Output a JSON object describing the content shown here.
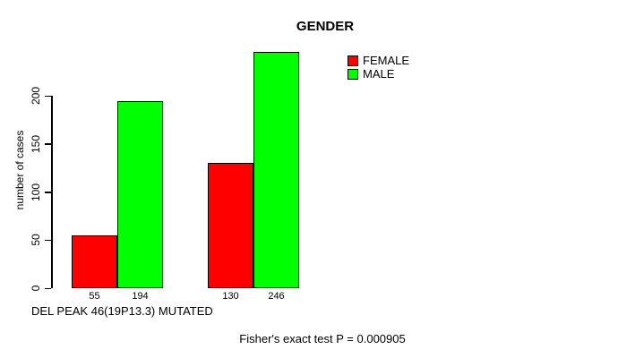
{
  "chart_data": {
    "type": "bar",
    "title": "GENDER",
    "ylabel": "number of cases",
    "xlabel": "DEL PEAK 46(19P13.3) MUTATED",
    "annotation": "Fisher's exact test P = 0.000905",
    "yticks": [
      0,
      50,
      100,
      150,
      200
    ],
    "ylim": [
      0,
      250
    ],
    "grid": false,
    "legend_position": "top-right",
    "series": [
      {
        "name": "FEMALE",
        "color": "#ff0000",
        "values": [
          55,
          130
        ]
      },
      {
        "name": "MALE",
        "color": "#00ff00",
        "values": [
          194,
          246
        ]
      }
    ],
    "bar_value_labels": [
      "55",
      "194",
      "130",
      "246"
    ]
  }
}
